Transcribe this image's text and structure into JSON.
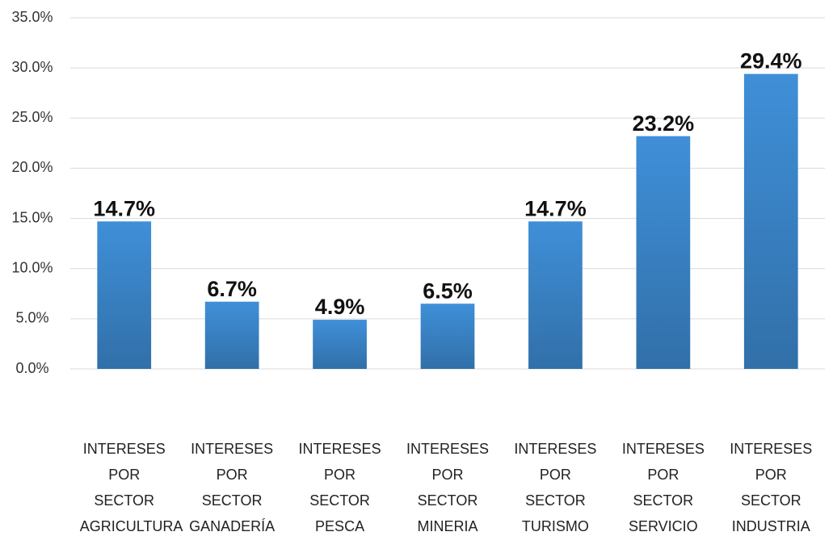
{
  "chart_data": {
    "type": "bar",
    "categories": [
      "INTERESES POR SECTOR AGRICULTURA",
      "INTERESES POR SECTOR GANADERÍA",
      "INTERESES POR SECTOR PESCA",
      "INTERESES POR SECTOR MINERIA",
      "INTERESES POR SECTOR TURISMO",
      "INTERESES POR SECTOR SERVICIO",
      "INTERESES POR SECTOR INDUSTRIA"
    ],
    "values": [
      14.7,
      6.7,
      4.9,
      6.5,
      14.7,
      23.2,
      29.4
    ],
    "value_labels": [
      "14.7%",
      "6.7%",
      "4.9%",
      "6.5%",
      "14.7%",
      "23.2%",
      "29.4%"
    ],
    "color": "#3f8fd8",
    "ylim": [
      0,
      35
    ],
    "yticks": [
      {
        "value": 0,
        "label": "0.0%"
      },
      {
        "value": 5,
        "label": "5.0%"
      },
      {
        "value": 10,
        "label": "10.0%"
      },
      {
        "value": 15,
        "label": "15.0%"
      },
      {
        "value": 20,
        "label": "20.0%"
      },
      {
        "value": 25,
        "label": "25.0%"
      },
      {
        "value": 30,
        "label": "30.0%"
      },
      {
        "value": 35,
        "label": "35.0%"
      }
    ],
    "grid": true
  }
}
